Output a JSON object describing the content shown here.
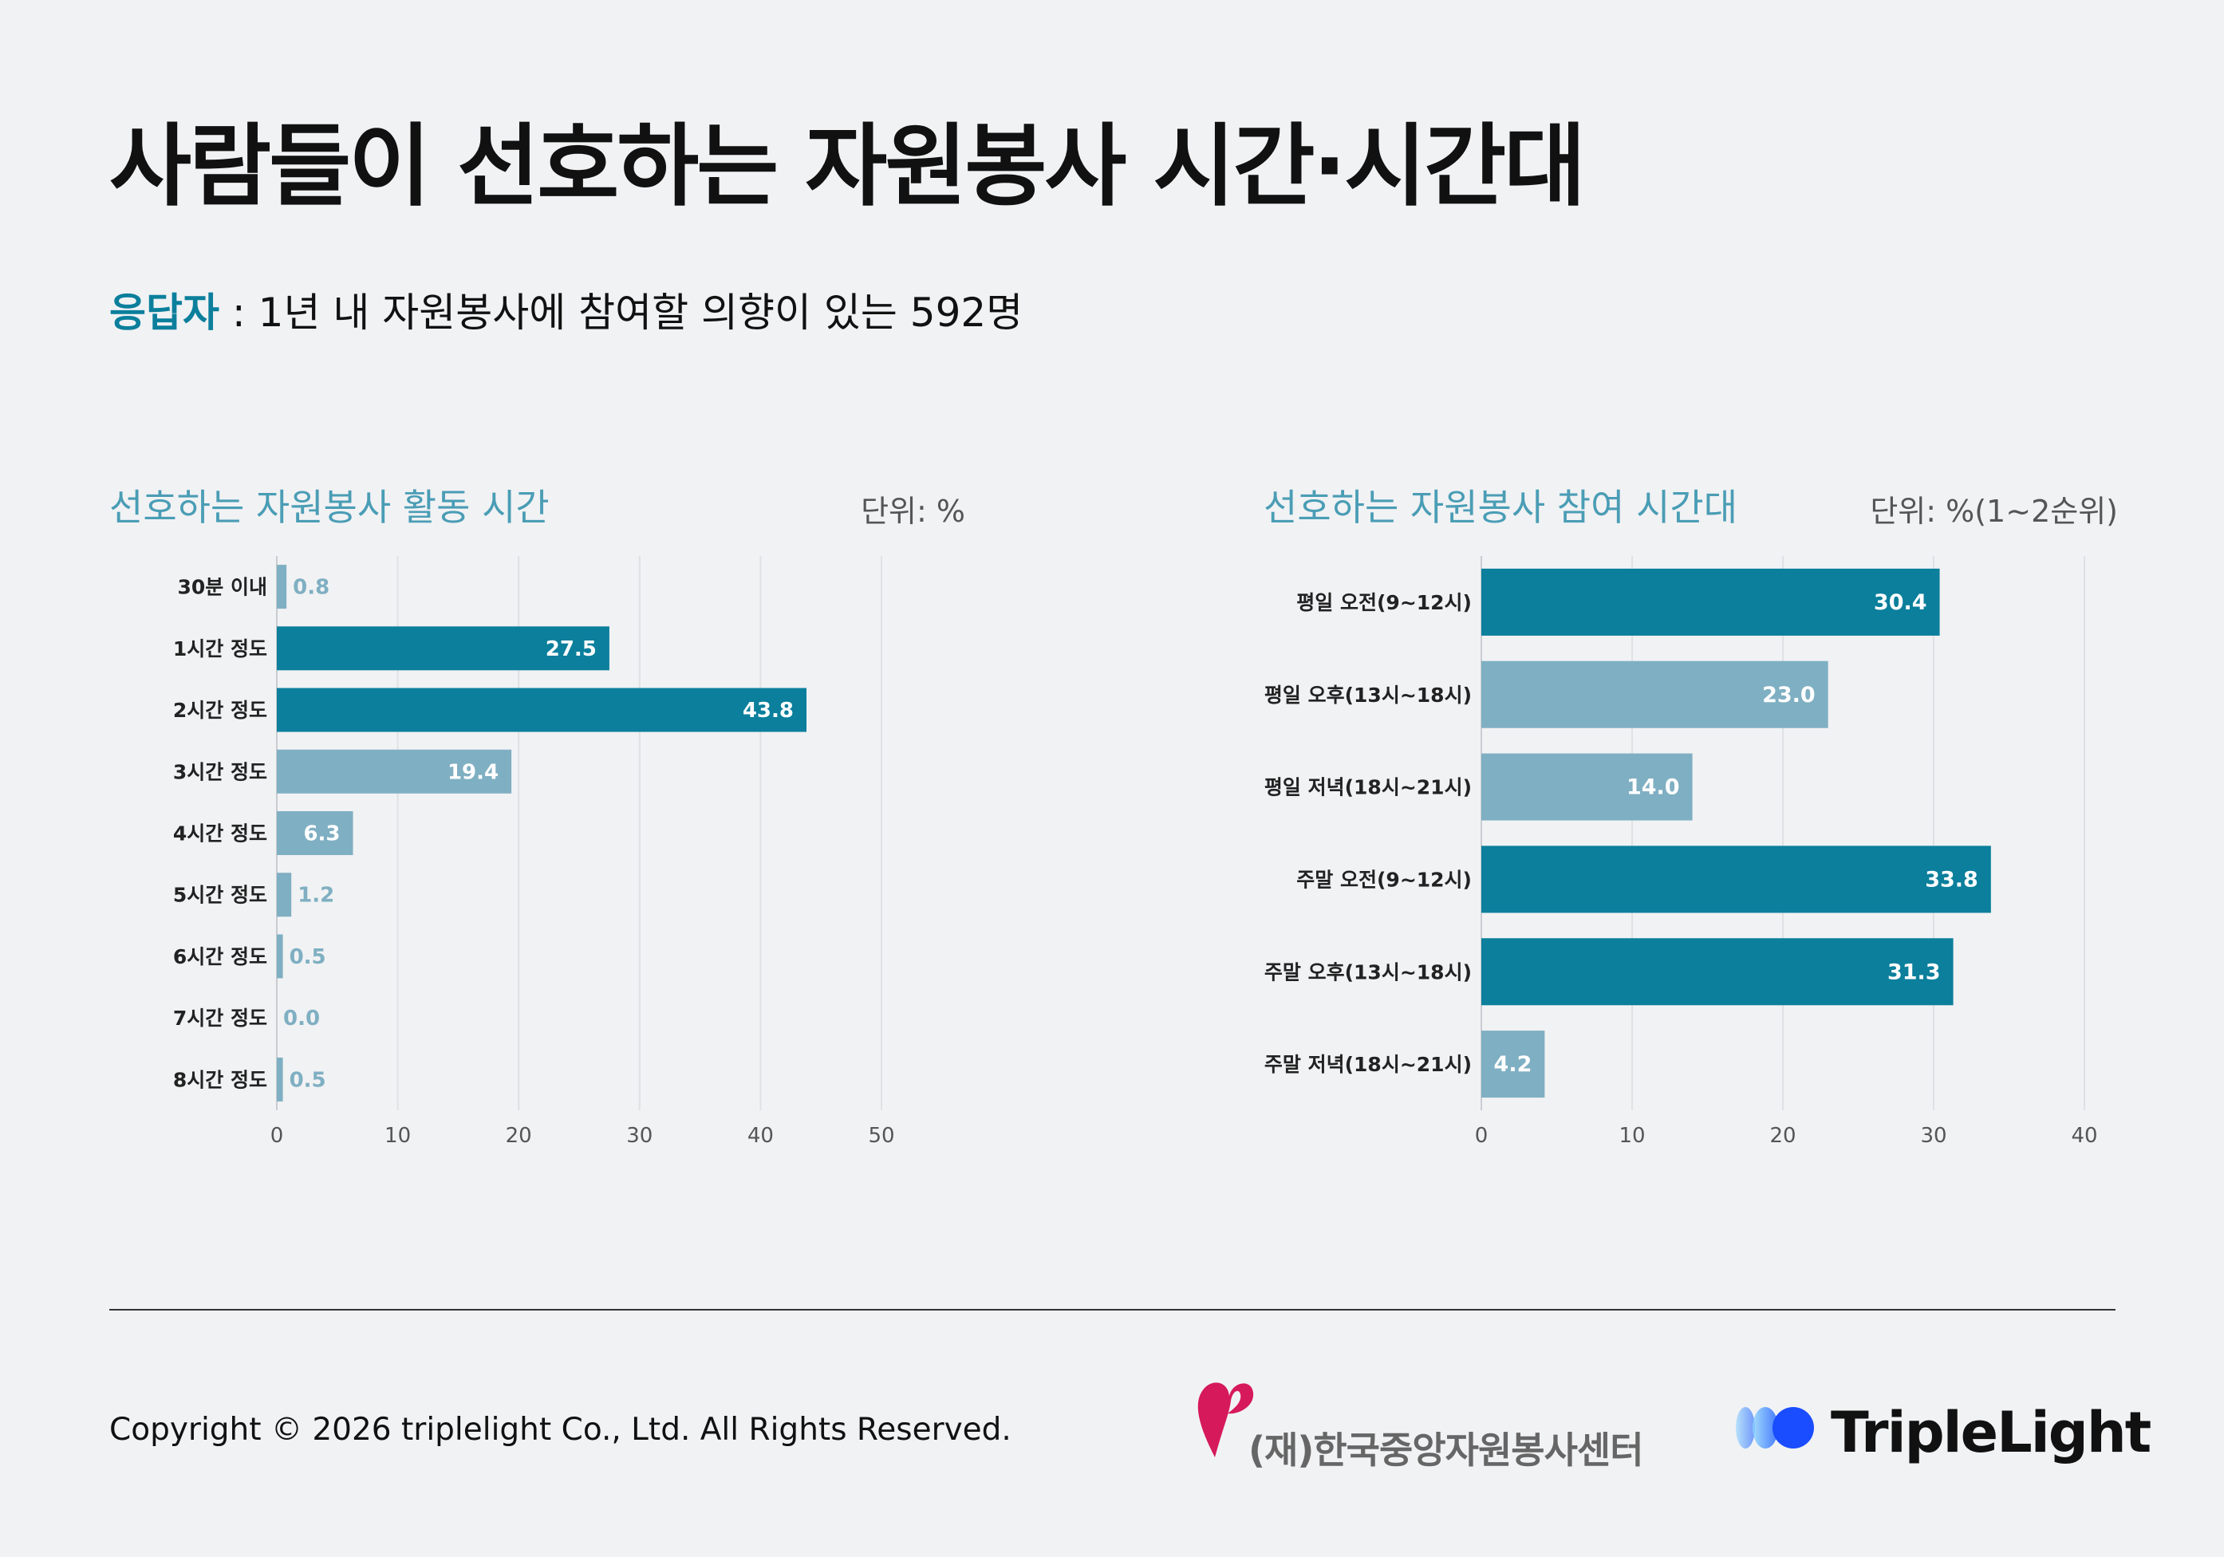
{
  "title": "사람들이 선호하는 자원봉사 시간·시간대",
  "respondent": {
    "label": "응답자",
    "text": " : 1년 내 자원봉사에 참여할 의향이 있는 592명"
  },
  "colors": {
    "highlight": "#0b7f9c",
    "normal": "#7fafc2",
    "label_outside": "#7fafc2",
    "accent_title": "#4a9db5"
  },
  "chart_data": [
    {
      "type": "bar",
      "orientation": "horizontal",
      "title": "선호하는 자원봉사 활동 시간",
      "unit": "단위: %",
      "categories": [
        "30분 이내",
        "1시간 정도",
        "2시간 정도",
        "3시간 정도",
        "4시간 정도",
        "5시간 정도",
        "6시간 정도",
        "7시간 정도",
        "8시간 정도"
      ],
      "values": [
        0.8,
        27.5,
        43.8,
        19.4,
        6.3,
        1.2,
        0.5,
        0.0,
        0.5
      ],
      "value_labels": [
        "0.8",
        "27.5",
        "43.8",
        "19.4",
        "6.3",
        "1.2",
        "0.5",
        "0.0",
        "0.5"
      ],
      "highlight": [
        false,
        true,
        true,
        false,
        false,
        false,
        false,
        false,
        false
      ],
      "xlim": [
        0,
        50
      ],
      "xticks": [
        0,
        10,
        20,
        30,
        40,
        50
      ],
      "xtick_labels": [
        "0",
        "10",
        "20",
        "30",
        "40",
        "50"
      ],
      "grid": true
    },
    {
      "type": "bar",
      "orientation": "horizontal",
      "title": "선호하는 자원봉사 참여 시간대",
      "unit": "단위: %(1~2순위)",
      "categories": [
        "평일 오전(9~12시)",
        "평일 오후(13시~18시)",
        "평일 저녁(18시~21시)",
        "주말 오전(9~12시)",
        "주말 오후(13시~18시)",
        "주말 저녁(18시~21시)"
      ],
      "values": [
        30.4,
        23.0,
        14.0,
        33.8,
        31.3,
        4.2
      ],
      "value_labels": [
        "30.4",
        "23.0",
        "14.0",
        "33.8",
        "31.3",
        "4.2"
      ],
      "highlight": [
        true,
        false,
        false,
        true,
        true,
        false
      ],
      "xlim": [
        0,
        40
      ],
      "xticks": [
        0,
        10,
        20,
        30,
        40
      ],
      "xtick_labels": [
        "0",
        "10",
        "20",
        "30",
        "40"
      ],
      "grid": true
    }
  ],
  "footer": {
    "copyright": "Copyright © 2026 triplelight Co., Ltd. All Rights Reserved.",
    "kcvc_name": "(재)한국중앙자원봉사센터",
    "triplelight_name": "TripleLight"
  }
}
